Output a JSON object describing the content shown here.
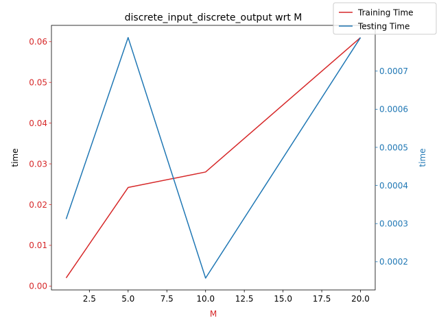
{
  "chart_data": {
    "type": "line",
    "title": "discrete_input_discrete_output wrt M",
    "xlabel": "M",
    "ylabel_left": "time",
    "ylabel_right": "time",
    "x": [
      1,
      5,
      10,
      20
    ],
    "xlim": [
      0.05,
      20.95
    ],
    "xticks": [
      2.5,
      5.0,
      7.5,
      10.0,
      12.5,
      15.0,
      17.5,
      20.0
    ],
    "xtick_labels": [
      "2.5",
      "5.0",
      "7.5",
      "10.0",
      "12.5",
      "15.0",
      "17.5",
      "20.0"
    ],
    "left_axis": {
      "ylim": [
        -0.00095,
        0.064
      ],
      "ticks": [
        0.0,
        0.01,
        0.02,
        0.03,
        0.04,
        0.05,
        0.06
      ],
      "tick_labels": [
        "0.00",
        "0.01",
        "0.02",
        "0.03",
        "0.04",
        "0.05",
        "0.06"
      ]
    },
    "right_axis": {
      "ylim": [
        0.000126,
        0.00082
      ],
      "ticks": [
        0.0002,
        0.0003,
        0.0004,
        0.0005,
        0.0006,
        0.0007
      ],
      "tick_labels": [
        "0.0002",
        "0.0003",
        "0.0004",
        "0.0005",
        "0.0006",
        "0.0007"
      ]
    },
    "series": [
      {
        "name": "Training Time",
        "axis": "left",
        "color": "#d62728",
        "values": [
          0.002,
          0.0242,
          0.028,
          0.061
        ]
      },
      {
        "name": "Testing Time",
        "axis": "right",
        "color": "#1f77b4",
        "values": [
          0.000312,
          0.000788,
          0.000157,
          0.000788
        ]
      }
    ],
    "legend_position": "top-right",
    "grid": false
  }
}
